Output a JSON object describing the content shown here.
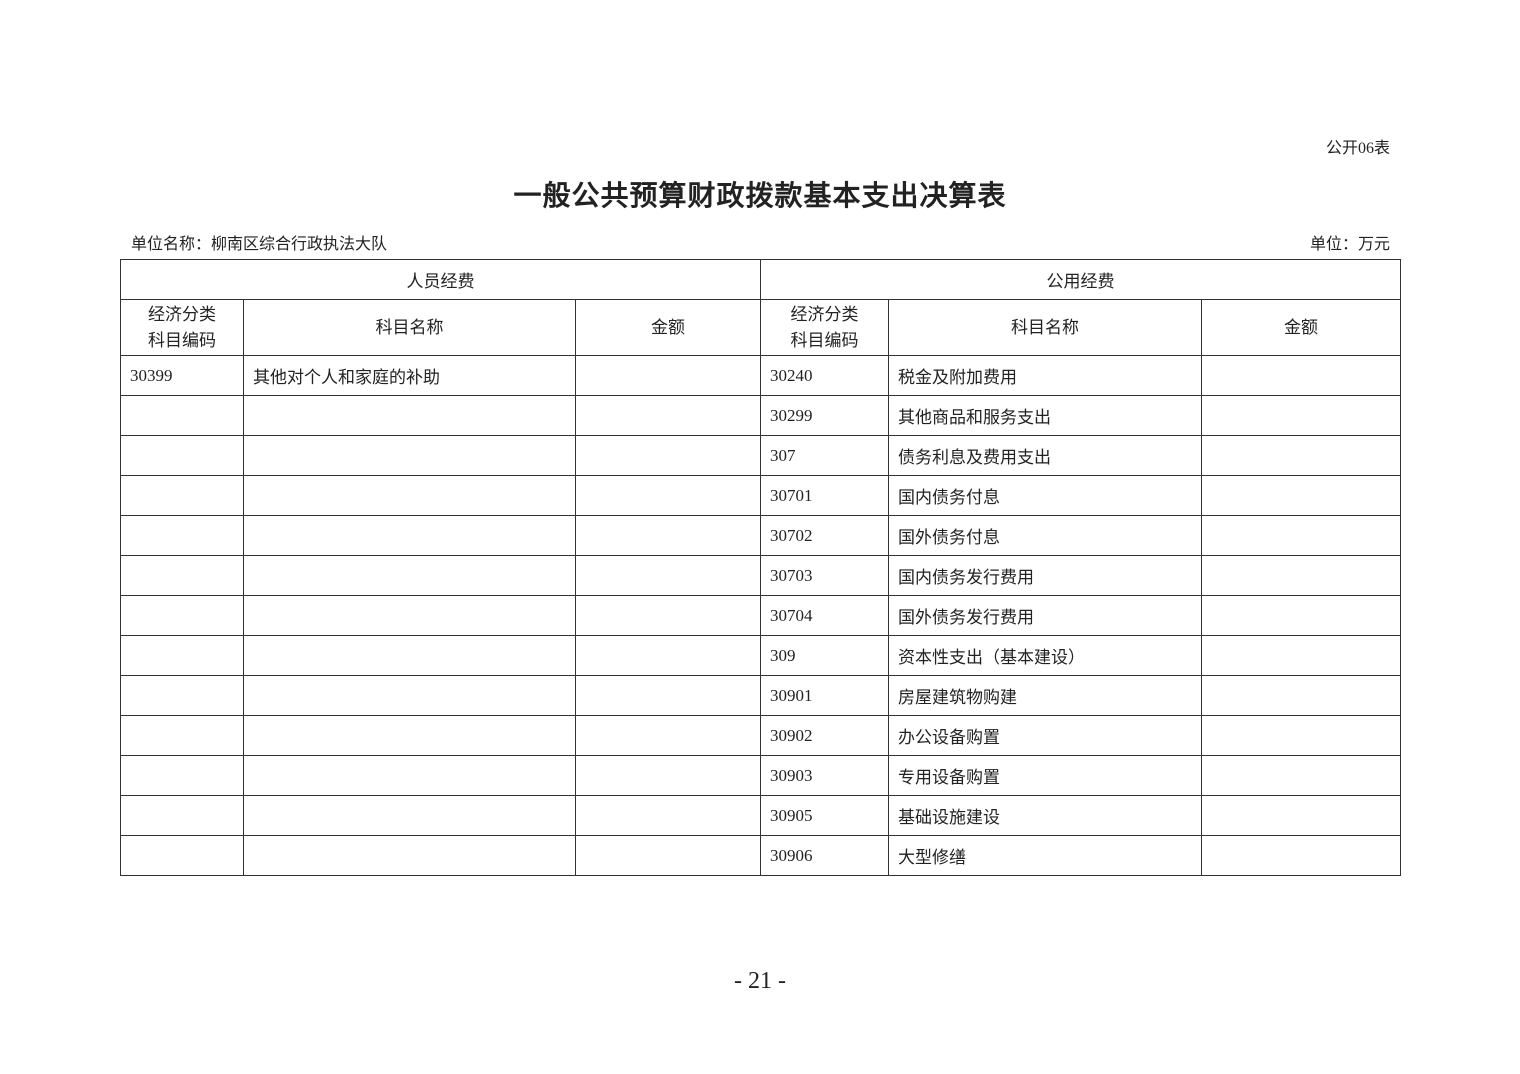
{
  "form_no": "公开06表",
  "title": "一般公共预算财政拨款基本支出决算表",
  "unit_name": "单位名称：柳南区综合行政执法大队",
  "unit": "单位：万元",
  "table": {
    "group_headers": [
      "人员经费",
      "公用经费"
    ],
    "column_headers": {
      "code_line1": "经济分类",
      "code_line2": "科目编码",
      "name": "科目名称",
      "amount": "金额"
    },
    "rows": [
      {
        "p_code": "30399",
        "p_name": "其他对个人和家庭的补助",
        "p_amount": "",
        "g_code": "30240",
        "g_name": "税金及附加费用",
        "g_amount": ""
      },
      {
        "p_code": "",
        "p_name": "",
        "p_amount": "",
        "g_code": "30299",
        "g_name": "其他商品和服务支出",
        "g_amount": ""
      },
      {
        "p_code": "",
        "p_name": "",
        "p_amount": "",
        "g_code": "307",
        "g_name": "债务利息及费用支出",
        "g_amount": ""
      },
      {
        "p_code": "",
        "p_name": "",
        "p_amount": "",
        "g_code": "30701",
        "g_name": "国内债务付息",
        "g_amount": ""
      },
      {
        "p_code": "",
        "p_name": "",
        "p_amount": "",
        "g_code": "30702",
        "g_name": "国外债务付息",
        "g_amount": ""
      },
      {
        "p_code": "",
        "p_name": "",
        "p_amount": "",
        "g_code": "30703",
        "g_name": "国内债务发行费用",
        "g_amount": ""
      },
      {
        "p_code": "",
        "p_name": "",
        "p_amount": "",
        "g_code": "30704",
        "g_name": "国外债务发行费用",
        "g_amount": ""
      },
      {
        "p_code": "",
        "p_name": "",
        "p_amount": "",
        "g_code": "309",
        "g_name": "资本性支出（基本建设）",
        "g_amount": ""
      },
      {
        "p_code": "",
        "p_name": "",
        "p_amount": "",
        "g_code": "30901",
        "g_name": "房屋建筑物购建",
        "g_amount": ""
      },
      {
        "p_code": "",
        "p_name": "",
        "p_amount": "",
        "g_code": "30902",
        "g_name": "办公设备购置",
        "g_amount": ""
      },
      {
        "p_code": "",
        "p_name": "",
        "p_amount": "",
        "g_code": "30903",
        "g_name": "专用设备购置",
        "g_amount": ""
      },
      {
        "p_code": "",
        "p_name": "",
        "p_amount": "",
        "g_code": "30905",
        "g_name": "基础设施建设",
        "g_amount": ""
      },
      {
        "p_code": "",
        "p_name": "",
        "p_amount": "",
        "g_code": "30906",
        "g_name": "大型修缮",
        "g_amount": ""
      }
    ]
  },
  "page_number": "- 21 -"
}
